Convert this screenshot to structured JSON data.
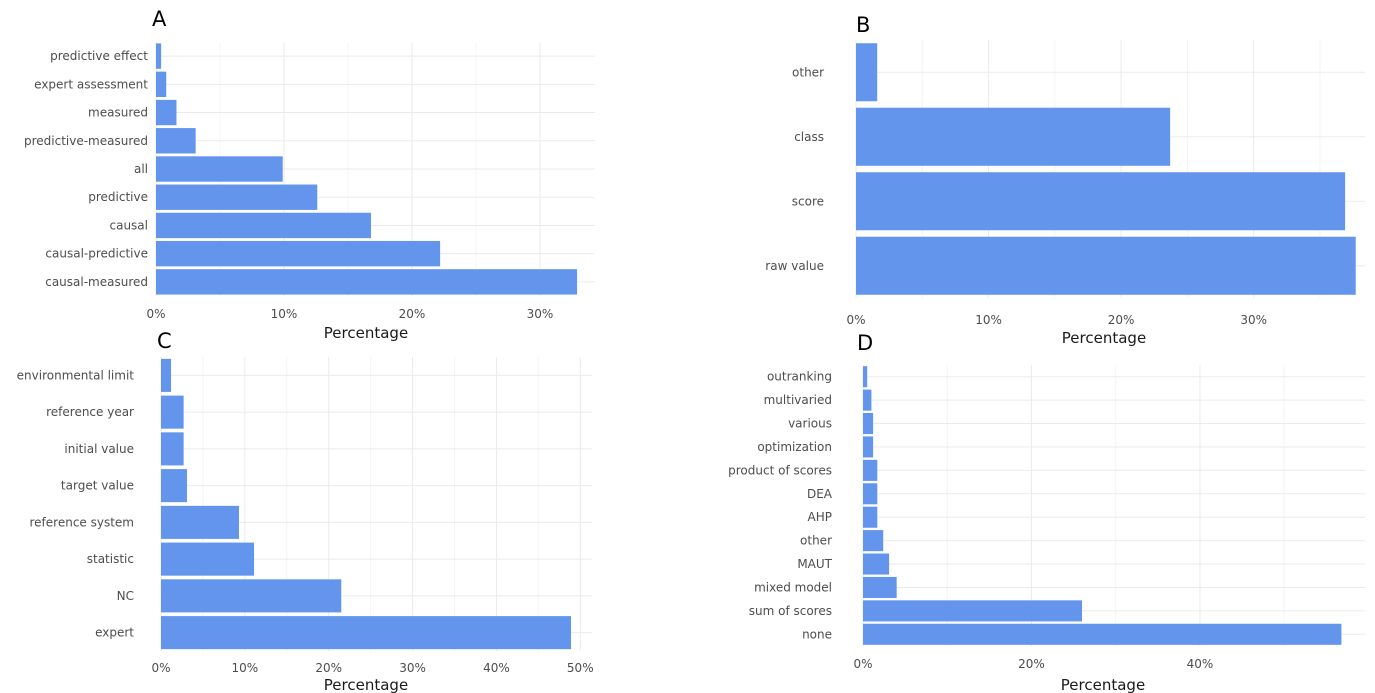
{
  "bar_color": "#6495ed",
  "chart_data": [
    {
      "panel": "A",
      "type": "bar",
      "orientation": "horizontal",
      "categories": [
        "predictive effect",
        "expert assessment",
        "measured",
        "predictive-measured",
        "all",
        "predictive",
        "causal",
        "causal-predictive",
        "causal-measured"
      ],
      "values": [
        0.4,
        0.8,
        1.6,
        3.1,
        9.9,
        12.6,
        16.8,
        22.2,
        32.9
      ],
      "xlabel": "Percentage",
      "ylabel": "",
      "xticks": [
        "0%",
        "10%",
        "20%",
        "30%"
      ],
      "xtick_values": [
        0,
        10,
        20,
        30
      ],
      "xlim": [
        0,
        34.3
      ],
      "grid": true
    },
    {
      "panel": "B",
      "type": "bar",
      "orientation": "horizontal",
      "categories": [
        "other",
        "class",
        "score",
        "raw value"
      ],
      "values": [
        1.6,
        23.7,
        36.9,
        37.7
      ],
      "xlabel": "Percentage",
      "ylabel": "",
      "xticks": [
        "0%",
        "10%",
        "20%",
        "30%"
      ],
      "xtick_values": [
        0,
        10,
        20,
        30
      ],
      "xlim": [
        0,
        38.4
      ],
      "grid": true
    },
    {
      "panel": "C",
      "type": "bar",
      "orientation": "horizontal",
      "categories": [
        "environmental limit",
        "reference year",
        "initial value",
        "target value",
        "reference system",
        "statistic",
        "NC",
        "expert"
      ],
      "values": [
        1.2,
        2.7,
        2.7,
        3.1,
        9.3,
        11.1,
        21.5,
        48.9
      ],
      "xlabel": "Percentage",
      "ylabel": "",
      "xticks": [
        "0%",
        "10%",
        "20%",
        "30%",
        "40%",
        "50%"
      ],
      "xtick_values": [
        0,
        10,
        20,
        30,
        40,
        50
      ],
      "xlim": [
        0,
        51.4
      ],
      "grid": true
    },
    {
      "panel": "D",
      "type": "bar",
      "orientation": "horizontal",
      "categories": [
        "outranking",
        "multivaried",
        "various",
        "optimization",
        "product of scores",
        "DEA",
        "AHP",
        "other",
        "MAUT",
        "mixed model",
        "sum of scores",
        "none"
      ],
      "values": [
        0.5,
        1.0,
        1.2,
        1.2,
        1.7,
        1.7,
        1.7,
        2.4,
        3.1,
        4.0,
        26.0,
        56.8
      ],
      "xlabel": "Percentage",
      "ylabel": "",
      "xticks": [
        "0%",
        "20%",
        "40%"
      ],
      "xtick_values": [
        0,
        20,
        40
      ],
      "xlim": [
        0,
        59.6
      ],
      "grid": true
    }
  ]
}
